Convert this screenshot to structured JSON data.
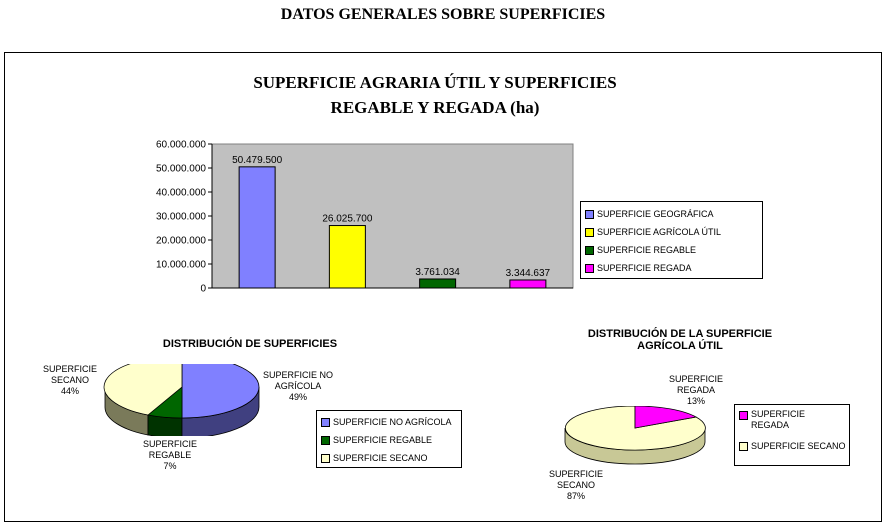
{
  "page_title": "DATOS GENERALES SOBRE SUPERFICIES",
  "bar_legend": [
    {
      "label": "SUPERFICIE GEOGRÁFICA",
      "color": "#8080ff"
    },
    {
      "label": "SUPERFICIE AGRÍCOLA ÚTIL",
      "color": "#ffff00"
    },
    {
      "label": "SUPERFICIE REGABLE",
      "color": "#006600"
    },
    {
      "label": "SUPERFICIE REGADA",
      "color": "#ff00ff"
    }
  ],
  "pie1": {
    "labels": [
      {
        "line1": "SUPERFICIE NO",
        "line2": "AGRÍCOLA",
        "pct": "49%"
      },
      {
        "line1": "SUPERFICIE",
        "line2": "REGABLE",
        "pct": "7%"
      },
      {
        "line1": "SUPERFICIE",
        "line2": "SECANO",
        "pct": "44%"
      }
    ],
    "legend": [
      {
        "label": "SUPERFICIE NO AGRÍCOLA",
        "color": "#8080ff"
      },
      {
        "label": "SUPERFICIE REGABLE",
        "color": "#006600"
      },
      {
        "label": "SUPERFICIE SECANO",
        "color": "#ffffcc"
      }
    ]
  },
  "pie2": {
    "labels": [
      {
        "line1": "SUPERFICIE",
        "line2": "REGADA",
        "pct": "13%"
      },
      {
        "line1": "SUPERFICIE",
        "line2": "SECANO",
        "pct": "87%"
      }
    ],
    "legend": [
      {
        "label1": "SUPERFICIE",
        "label2": "REGADA",
        "color": "#ff00ff"
      },
      {
        "label1": "SUPERFICIE SECANO",
        "label2": "",
        "color": "#ffffcc"
      }
    ]
  },
  "chart_data": [
    {
      "type": "bar",
      "title": "SUPERFICIE AGRARIA ÚTIL Y SUPERFICIES REGABLE Y REGADA (ha)",
      "title_line1": "SUPERFICIE AGRARIA ÚTIL Y SUPERFICIES",
      "title_line2": "REGABLE Y REGADA (ha)",
      "categories": [
        "SUPERFICIE GEOGRÁFICA",
        "SUPERFICIE AGRÍCOLA ÚTIL",
        "SUPERFICIE REGABLE",
        "SUPERFICIE REGADA"
      ],
      "values": [
        50479500,
        26025700,
        3761034,
        3344637
      ],
      "data_labels": [
        "50.479.500",
        "26.025.700",
        "3.761.034",
        "3.344.637"
      ],
      "colors": [
        "#8080ff",
        "#ffff00",
        "#006600",
        "#ff00ff"
      ],
      "ylim": [
        0,
        60000000
      ],
      "yticks": [
        "60.000.000",
        "50.000.000",
        "40.000.000",
        "30.000.000",
        "20.000.000",
        "10.000.000",
        "0"
      ],
      "ytick_values": [
        60000000,
        50000000,
        40000000,
        30000000,
        20000000,
        10000000,
        0
      ],
      "plot_background": "#c0c0c0",
      "legend_position": "right",
      "xlabel": "",
      "ylabel": ""
    },
    {
      "type": "pie",
      "title": "DISTRIBUCIÓN DE SUPERFICIES",
      "labels": [
        "SUPERFICIE NO AGRÍCOLA",
        "SUPERFICIE REGABLE",
        "SUPERFICIE SECANO"
      ],
      "values": [
        49,
        7,
        44
      ],
      "colors": [
        "#8080ff",
        "#006600",
        "#ffffcc"
      ],
      "legend_position": "right"
    },
    {
      "type": "pie",
      "title": "DISTRIBUCIÓN DE LA SUPERFICIE AGRÍCOLA ÚTIL",
      "title_line1": "DISTRIBUCIÓN DE LA SUPERFICIE",
      "title_line2": "AGRÍCOLA ÚTIL",
      "labels": [
        "SUPERFICIE REGADA",
        "SUPERFICIE SECANO"
      ],
      "values": [
        13,
        87
      ],
      "colors": [
        "#ff00ff",
        "#ffffcc"
      ],
      "legend_position": "right"
    }
  ]
}
